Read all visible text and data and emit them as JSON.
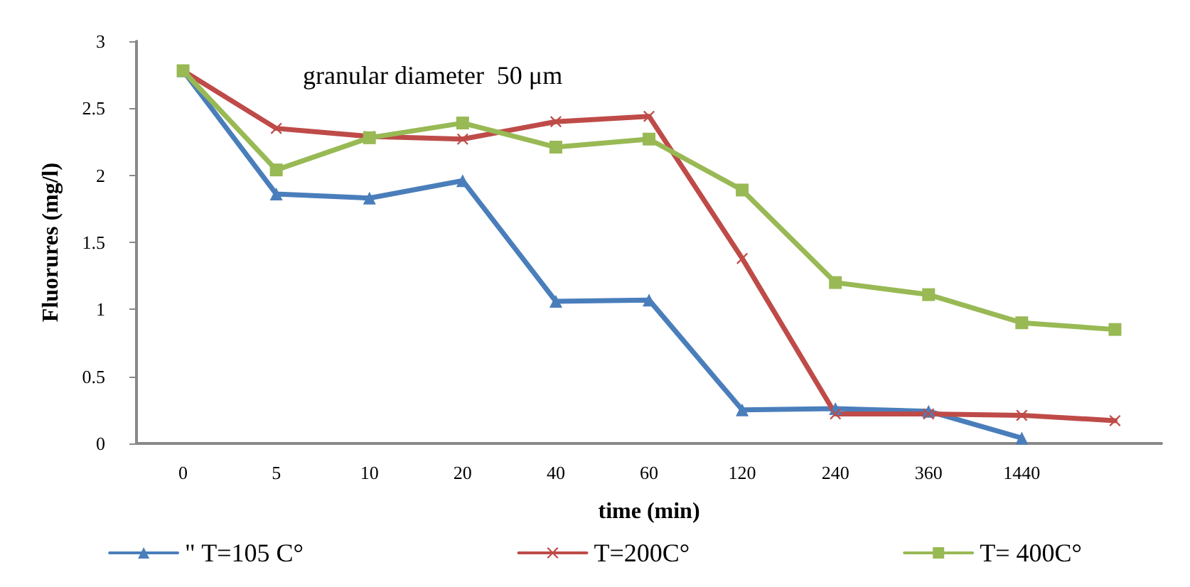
{
  "chart_data": {
    "type": "line",
    "xlabel": "time (min)",
    "ylabel": "Fluorures (mg/l)",
    "annotations": [
      "granular diameter  50 μm"
    ],
    "categories": [
      "0",
      "5",
      "10",
      "20",
      "40",
      "60",
      "120",
      "240",
      "360",
      "1440",
      null
    ],
    "ylim": [
      0,
      3
    ],
    "yticks": [
      0,
      0.5,
      1,
      1.5,
      2,
      2.5,
      3
    ],
    "grid": false,
    "legend": "bottom",
    "line_style": "solid",
    "series": [
      {
        "name": "\" T=105 C°",
        "color": "#4a7ebb",
        "marker": "triangle",
        "values": [
          2.78,
          1.86,
          1.83,
          1.96,
          1.06,
          1.07,
          0.25,
          0.26,
          0.24,
          0.04,
          null
        ]
      },
      {
        "name": "T=200C°",
        "color": "#be4b48",
        "marker": "cross",
        "values": [
          2.78,
          2.35,
          2.29,
          2.27,
          2.4,
          2.44,
          1.38,
          0.22,
          0.22,
          0.21,
          0.17
        ]
      },
      {
        "name": "T= 400C°",
        "color": "#98b954",
        "marker": "square",
        "values": [
          2.78,
          2.04,
          2.28,
          2.39,
          2.21,
          2.27,
          1.89,
          1.2,
          1.11,
          0.9,
          0.85
        ]
      }
    ]
  }
}
